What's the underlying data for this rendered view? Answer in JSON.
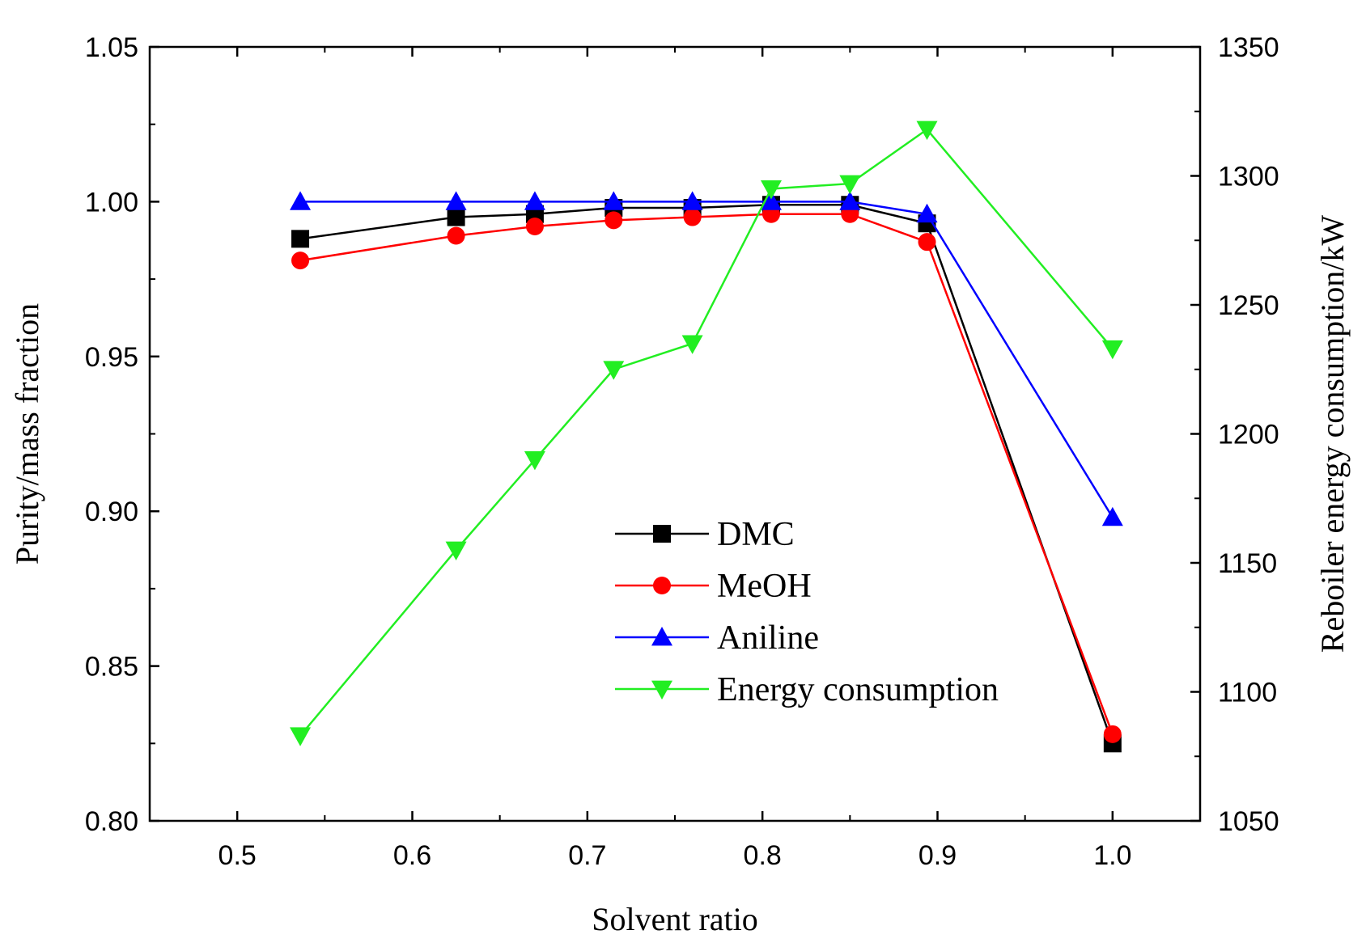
{
  "chart_data": {
    "type": "line",
    "title": "",
    "xlabel": "Solvent ratio",
    "ylabel": "Purity/mass fraction",
    "y2label": "Reboiler energy consumption/kW",
    "xlim": [
      0.45,
      1.05
    ],
    "ylim": [
      0.8,
      1.05
    ],
    "y2lim": [
      1050,
      1350
    ],
    "x_ticks": [
      "0.5",
      "0.6",
      "0.7",
      "0.8",
      "0.9",
      "1.0"
    ],
    "y_ticks": [
      "0.80",
      "0.85",
      "0.90",
      "0.95",
      "1.00",
      "1.05"
    ],
    "y2_ticks": [
      "1050",
      "1100",
      "1150",
      "1200",
      "1250",
      "1300",
      "1350"
    ],
    "legend_position": "center-right",
    "grid": false,
    "x": [
      0.536,
      0.625,
      0.67,
      0.715,
      0.76,
      0.805,
      0.85,
      0.894,
      1.0
    ],
    "series": [
      {
        "name": "DMC",
        "axis": "left",
        "color": "#000000",
        "marker": "square",
        "values": [
          0.988,
          0.995,
          0.996,
          0.998,
          0.998,
          0.999,
          0.999,
          0.993,
          0.825
        ]
      },
      {
        "name": "MeOH",
        "axis": "left",
        "color": "#ff0000",
        "marker": "circle",
        "values": [
          0.981,
          0.989,
          0.992,
          0.994,
          0.995,
          0.996,
          0.996,
          0.987,
          0.828
        ]
      },
      {
        "name": "Aniline",
        "axis": "left",
        "color": "#0000ff",
        "marker": "triangle-up",
        "values": [
          1.0,
          1.0,
          1.0,
          1.0,
          1.0,
          1.0,
          1.0,
          0.996,
          0.898
        ]
      },
      {
        "name": "Energy consumption",
        "axis": "right",
        "color": "#22ee22",
        "marker": "triangle-down",
        "values": [
          1083,
          1155,
          1190,
          1225,
          1235,
          1295,
          1297,
          1318,
          1233
        ]
      }
    ]
  }
}
